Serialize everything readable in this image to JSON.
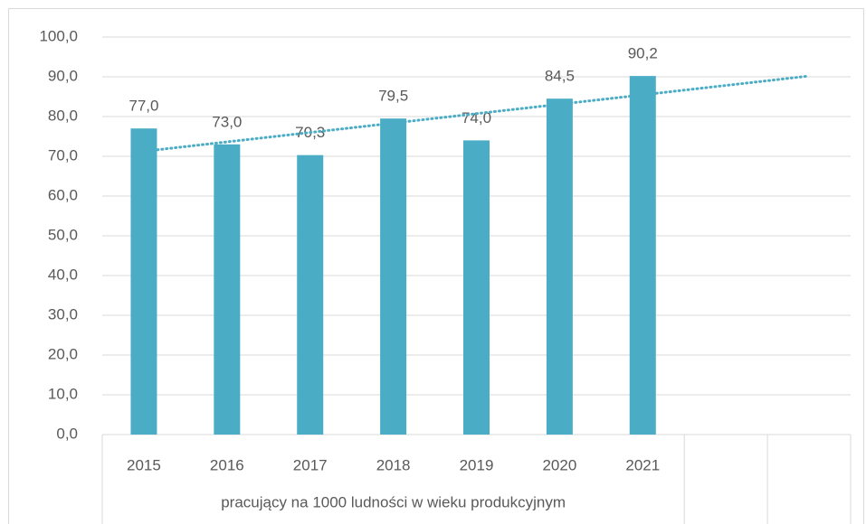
{
  "chart_data": {
    "type": "bar",
    "categories": [
      "2015",
      "2016",
      "2017",
      "2018",
      "2019",
      "2020",
      "2021",
      null,
      null
    ],
    "values": [
      77.0,
      73.0,
      70.3,
      79.5,
      74.0,
      84.5,
      90.2,
      null,
      null
    ],
    "value_labels": [
      "77,0",
      "73,0",
      "70,3",
      "79,5",
      "74,0",
      "84,5",
      "90,2",
      null,
      null
    ],
    "x_group_label": "pracujący na 1000 ludności w wieku produkcyjnym",
    "color": "#4bacc6",
    "trendline": "linear",
    "trendline_color": "#4bacc6",
    "ylim": [
      0,
      100
    ],
    "yticks": [
      {
        "value": 0,
        "label": "0,0"
      },
      {
        "value": 10,
        "label": "10,0"
      },
      {
        "value": 20,
        "label": "20,0"
      },
      {
        "value": 30,
        "label": "30,0"
      },
      {
        "value": 40,
        "label": "40,0"
      },
      {
        "value": 50,
        "label": "50,0"
      },
      {
        "value": 60,
        "label": "60,0"
      },
      {
        "value": 70,
        "label": "70,0"
      },
      {
        "value": 80,
        "label": "80,0"
      },
      {
        "value": 90,
        "label": "90,0"
      },
      {
        "value": 100,
        "label": "100,0"
      }
    ],
    "grid": true
  }
}
